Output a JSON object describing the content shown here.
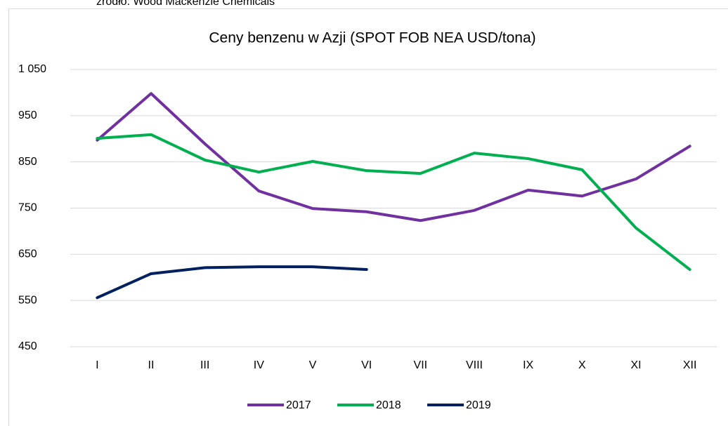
{
  "chart_data": {
    "type": "line",
    "source": "źródło: Wood Mackenzie Chemicals",
    "title": "Ceny benzenu w Azji (SPOT FOB NEA USD/tona)",
    "categories": [
      "I",
      "II",
      "III",
      "IV",
      "V",
      "VI",
      "VII",
      "VIII",
      "IX",
      "X",
      "XI",
      "XII"
    ],
    "series": [
      {
        "name": "2017",
        "color": "#7030a0",
        "values": [
          897,
          998,
          889,
          787,
          749,
          742,
          723,
          745,
          789,
          776,
          813,
          884
        ]
      },
      {
        "name": "2018",
        "color": "#00b050",
        "values": [
          901,
          909,
          854,
          828,
          851,
          831,
          825,
          869,
          857,
          833,
          707,
          617
        ]
      },
      {
        "name": "2019",
        "color": "#002060",
        "values": [
          556,
          608,
          621,
          623,
          623,
          617,
          null,
          null,
          null,
          null,
          null,
          null
        ]
      }
    ],
    "ylim": [
      450,
      1050
    ],
    "yticks": [
      450,
      550,
      650,
      750,
      850,
      950,
      {
        "value": 1050,
        "label": "1 050"
      }
    ],
    "grid": true,
    "legend": "bottom"
  }
}
